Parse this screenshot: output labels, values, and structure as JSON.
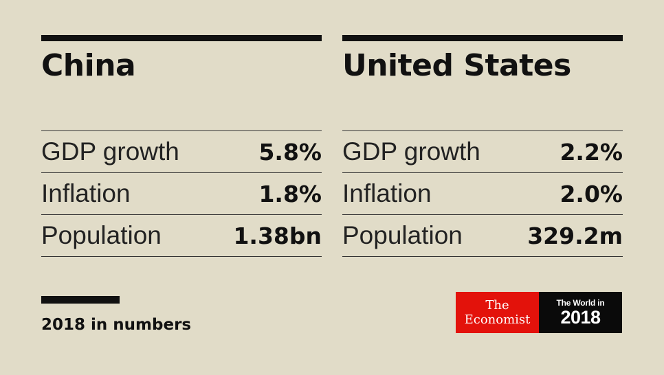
{
  "countries": [
    {
      "name": "China",
      "stats": [
        {
          "label": "GDP growth",
          "value": "5.8%"
        },
        {
          "label": "Inflation",
          "value": "1.8%"
        },
        {
          "label": "Population",
          "value": "1.38bn"
        }
      ]
    },
    {
      "name": "United States",
      "stats": [
        {
          "label": "GDP growth",
          "value": "2.2%"
        },
        {
          "label": "Inflation",
          "value": "2.0%"
        },
        {
          "label": "Population",
          "value": "329.2m"
        }
      ]
    }
  ],
  "footer": {
    "caption": "2018 in numbers"
  },
  "logo": {
    "economist_the": "The",
    "economist_name": "Economist",
    "world_in": "The World in",
    "year": "2018"
  },
  "colors": {
    "background": "#e1dcc8",
    "text": "#111111",
    "economist_red": "#e3120b",
    "logo_black": "#0a0a0a"
  }
}
